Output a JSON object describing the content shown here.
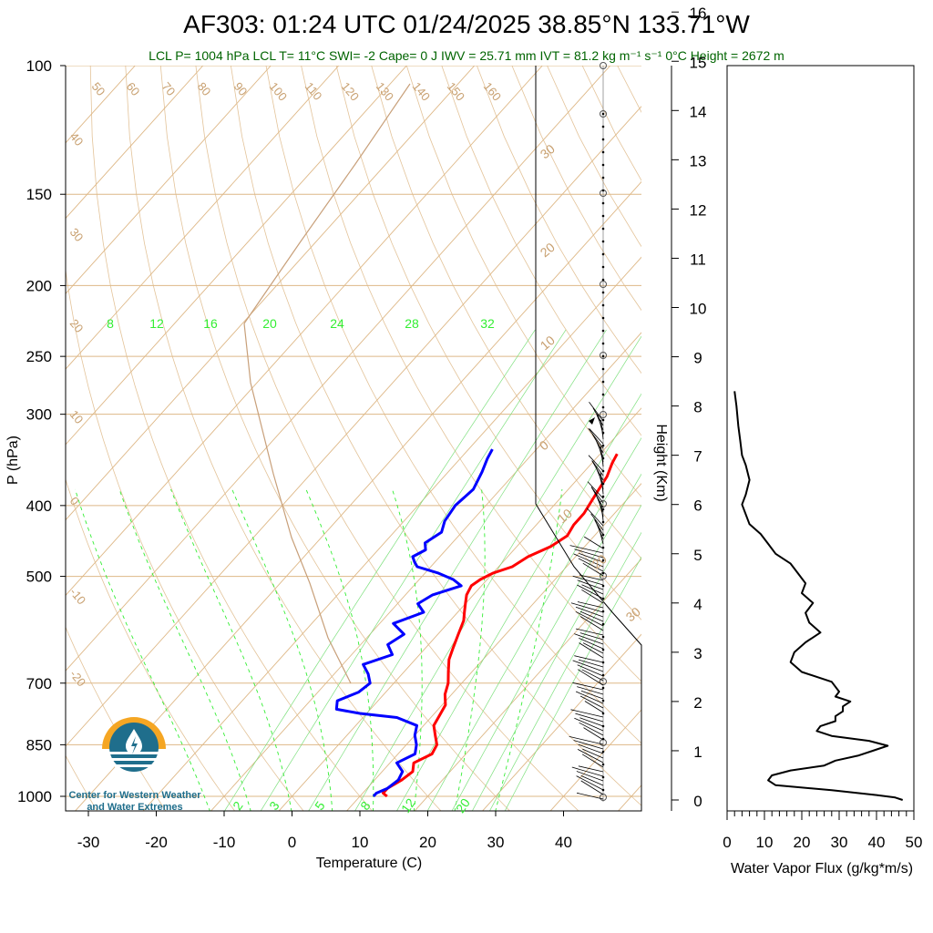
{
  "title": "AF303: 01:24 UTC 01/24/2025  38.85°N 133.71°W",
  "subtitle": "LCL P= 1004 hPa  LCL T= 11°C  SWI= -2  Cape= 0 J  IWV = 25.71 mm  IVT = 81.2 kg m⁻¹ s⁻¹  0°C Height = 2672 m",
  "logo": {
    "line1": "Center for Western Weather",
    "line2": "and Water Extremes"
  },
  "colors": {
    "temperature": "#ff0000",
    "dewpoint": "#0000ff",
    "isotherm": "#deb887",
    "mixing_ratio": "#33ee33",
    "logo_orange": "#f5a623",
    "logo_blue": "#1f6e8c"
  },
  "chart_data": [
    {
      "type": "line",
      "name": "skew-t",
      "xlabel": "Temperature (C)",
      "ylabel": "P (hPa)",
      "xticks": [
        -30,
        -20,
        -10,
        0,
        10,
        20,
        30,
        40
      ],
      "yticks": [
        100,
        150,
        200,
        250,
        300,
        400,
        500,
        700,
        850,
        1000
      ],
      "xlim": [
        -33,
        52
      ],
      "ylim": [
        1050,
        100
      ],
      "yscale": "log",
      "skewed_isotherm_labels": [
        50,
        60,
        70,
        80,
        90,
        100,
        110,
        120,
        130,
        140,
        150,
        160,
        40,
        30,
        20,
        10,
        0,
        -10,
        -20
      ],
      "mixing_ratio_labels_upper": [
        8,
        12,
        16,
        20,
        24,
        28,
        32
      ],
      "mixing_ratio_labels_lower": [
        2,
        3,
        5,
        8,
        12,
        20
      ],
      "right_edge_labels": [
        30,
        20,
        10,
        0,
        10,
        20,
        30
      ],
      "series": [
        {
          "name": "Temperature",
          "color": "#ff0000",
          "p": [
            1000,
            990,
            975,
            950,
            925,
            900,
            875,
            850,
            825,
            800,
            775,
            750,
            725,
            700,
            675,
            650,
            625,
            600,
            575,
            560,
            545,
            530,
            515,
            505,
            495,
            485,
            470,
            455,
            440,
            425,
            410,
            395,
            380,
            365,
            350,
            340
          ],
          "t": [
            14,
            13,
            13,
            14,
            14.5,
            13.5,
            15,
            14.5,
            13,
            11.5,
            11,
            10.5,
            9,
            8,
            6.5,
            5,
            4,
            3,
            2,
            1,
            0,
            -1,
            -1.5,
            -1,
            0,
            2,
            3,
            5,
            6,
            5.5,
            5.5,
            5,
            4.5,
            4,
            3,
            2.5
          ]
        },
        {
          "name": "Dewpoint",
          "color": "#0000ff",
          "p": [
            1000,
            990,
            975,
            950,
            925,
            900,
            875,
            850,
            825,
            800,
            780,
            770,
            760,
            740,
            720,
            700,
            680,
            660,
            640,
            620,
            600,
            580,
            560,
            545,
            530,
            515,
            505,
            495,
            485,
            478,
            470,
            460,
            450,
            435,
            420,
            400,
            380,
            360,
            345,
            335
          ],
          "t": [
            12,
            12,
            13,
            13.5,
            13,
            11,
            12.5,
            11.5,
            10,
            9,
            5,
            -1,
            -5,
            -6,
            -4,
            -3.5,
            -5,
            -7,
            -4,
            -6,
            -5,
            -8,
            -5,
            -7,
            -6,
            -3,
            -5,
            -8,
            -12,
            -13,
            -14,
            -13,
            -14,
            -13,
            -14,
            -14.5,
            -14,
            -15,
            -16,
            -16.5
          ]
        }
      ]
    },
    {
      "type": "line",
      "name": "water-vapor-flux",
      "xlabel": "Water Vapor Flux (g/kg*m/s)",
      "ylabel": "Height (Km)",
      "xticks": [
        0,
        10,
        20,
        30,
        40,
        50
      ],
      "yticks": [
        0,
        1,
        2,
        3,
        4,
        5,
        6,
        7,
        8,
        9,
        10,
        11,
        12,
        13,
        14,
        15,
        16
      ],
      "xlim": [
        0,
        50
      ],
      "ylim": [
        -0.2,
        16.3
      ],
      "series": [
        {
          "name": "Flux",
          "color": "#000000",
          "height": [
            0,
            0.05,
            0.1,
            0.2,
            0.3,
            0.4,
            0.5,
            0.6,
            0.7,
            0.8,
            0.9,
            1.0,
            1.1,
            1.2,
            1.3,
            1.4,
            1.5,
            1.6,
            1.7,
            1.8,
            1.9,
            2.0,
            2.1,
            2.2,
            2.4,
            2.6,
            2.8,
            3.0,
            3.2,
            3.4,
            3.6,
            3.8,
            4.0,
            4.2,
            4.4,
            4.6,
            4.8,
            5.0,
            5.2,
            5.4,
            5.6,
            5.8,
            6.0,
            6.2,
            6.5,
            6.8,
            7.0,
            7.3,
            7.6,
            8.0,
            8.3
          ],
          "flux": [
            47,
            45,
            40,
            28,
            13,
            11,
            12,
            17,
            26,
            29,
            35,
            39,
            43,
            38,
            28,
            24,
            25,
            29,
            29,
            31,
            31,
            33,
            29,
            30,
            28,
            20,
            17,
            18,
            21,
            25,
            22,
            21,
            23,
            20,
            21,
            19,
            17,
            13,
            11,
            9,
            6,
            5,
            4,
            5,
            6,
            5,
            4,
            3.5,
            3,
            2.5,
            2
          ]
        }
      ]
    }
  ]
}
